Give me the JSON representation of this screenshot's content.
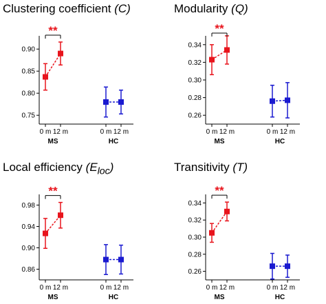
{
  "chart_data": [
    {
      "type": "line",
      "title": "Clustering coefficient",
      "title_symbol": "(C)",
      "title_subscript": "",
      "title_close": "",
      "ylim": [
        0.73,
        0.93
      ],
      "yticks": [
        0.75,
        0.8,
        0.85,
        0.9
      ],
      "ytick_labels": [
        "0.75",
        "0.80",
        "0.85",
        "0.90"
      ],
      "x_categories": [
        "0 m",
        "12 m",
        "0 m",
        "12 m"
      ],
      "groups": [
        "MS",
        "HC"
      ],
      "significance": "**",
      "series": [
        {
          "name": "MS",
          "color": "#e8141c",
          "x": [
            "0 m",
            "12 m"
          ],
          "values": [
            0.837,
            0.89
          ],
          "error": [
            0.03,
            0.026
          ]
        },
        {
          "name": "HC",
          "color": "#1a1ad0",
          "x": [
            "0 m",
            "12 m"
          ],
          "values": [
            0.78,
            0.78
          ],
          "error": [
            0.034,
            0.027
          ]
        }
      ]
    },
    {
      "type": "line",
      "title": "Modularity",
      "title_symbol": "(Q)",
      "title_subscript": "",
      "title_close": "",
      "ylim": [
        0.25,
        0.35
      ],
      "yticks": [
        0.26,
        0.28,
        0.3,
        0.32,
        0.34
      ],
      "ytick_labels": [
        "0.26",
        "0.28",
        "0.30",
        "0.32",
        "0.34"
      ],
      "x_categories": [
        "0 m",
        "12 m",
        "0 m",
        "12 m"
      ],
      "groups": [
        "MS",
        "HC"
      ],
      "significance": "**",
      "series": [
        {
          "name": "MS",
          "color": "#e8141c",
          "x": [
            "0 m",
            "12 m"
          ],
          "values": [
            0.323,
            0.334
          ],
          "error": [
            0.017,
            0.016
          ]
        },
        {
          "name": "HC",
          "color": "#1a1ad0",
          "x": [
            "0 m",
            "12 m"
          ],
          "values": [
            0.276,
            0.277
          ],
          "error": [
            0.018,
            0.02
          ]
        }
      ]
    },
    {
      "type": "line",
      "title": "Local efficiency",
      "title_symbol": "(E",
      "title_subscript": "loc",
      "title_close": ")",
      "ylim": [
        0.84,
        1.0
      ],
      "yticks": [
        0.86,
        0.9,
        0.94,
        0.98
      ],
      "ytick_labels": [
        "0.86",
        "0.90",
        "0.94",
        "0.98"
      ],
      "x_categories": [
        "0 m",
        "12 m",
        "0 m",
        "12 m"
      ],
      "groups": [
        "MS",
        "HC"
      ],
      "significance": "**",
      "series": [
        {
          "name": "MS",
          "color": "#e8141c",
          "x": [
            "0 m",
            "12 m"
          ],
          "values": [
            0.927,
            0.961
          ],
          "error": [
            0.028,
            0.024
          ]
        },
        {
          "name": "HC",
          "color": "#1a1ad0",
          "x": [
            "0 m",
            "12 m"
          ],
          "values": [
            0.878,
            0.878
          ],
          "error": [
            0.028,
            0.027
          ]
        }
      ]
    },
    {
      "type": "line",
      "title": "Transitivity",
      "title_symbol": "(T)",
      "title_subscript": "",
      "title_close": "",
      "ylim": [
        0.25,
        0.35
      ],
      "yticks": [
        0.26,
        0.28,
        0.3,
        0.32,
        0.34
      ],
      "ytick_labels": [
        "0.26",
        "0.28",
        "0.30",
        "0.32",
        "0.34"
      ],
      "x_categories": [
        "0 m",
        "12 m",
        "0 m",
        "12 m"
      ],
      "groups": [
        "MS",
        "HC"
      ],
      "significance": "**",
      "series": [
        {
          "name": "MS",
          "color": "#e8141c",
          "x": [
            "0 m",
            "12 m"
          ],
          "values": [
            0.305,
            0.33
          ],
          "error": [
            0.011,
            0.011
          ]
        },
        {
          "name": "HC",
          "color": "#1a1ad0",
          "x": [
            "0 m",
            "12 m"
          ],
          "values": [
            0.266,
            0.266
          ],
          "error": [
            0.015,
            0.013
          ]
        }
      ]
    }
  ]
}
